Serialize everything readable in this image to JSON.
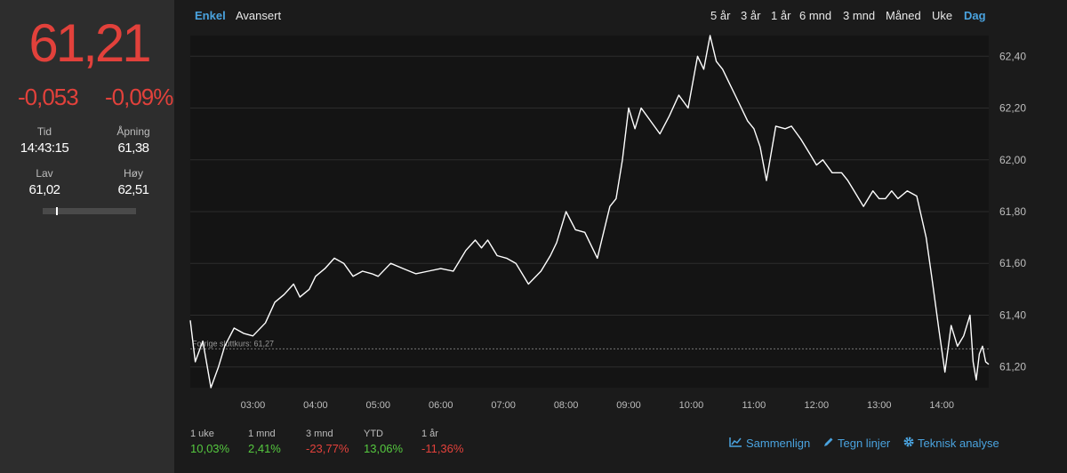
{
  "quote": {
    "price": "61,21",
    "change_abs": "-0,053",
    "change_pct": "-0,09%",
    "time_label": "Tid",
    "time_value": "14:43:15",
    "open_label": "Åpning",
    "open_value": "61,38",
    "low_label": "Lav",
    "low_value": "61,02",
    "high_label": "Høy",
    "high_value": "62,51",
    "range_position": 0.14
  },
  "view_tabs": [
    {
      "label": "Enkel",
      "active": true
    },
    {
      "label": "Avansert",
      "active": false
    }
  ],
  "periods": [
    {
      "label": "5 år",
      "active": false
    },
    {
      "label": "3 år",
      "active": false
    },
    {
      "label": "1 år",
      "active": false
    },
    {
      "label": "6 mnd",
      "active": false
    },
    {
      "label": "3 mnd",
      "active": false
    },
    {
      "label": "Måned",
      "active": false
    },
    {
      "label": "Uke",
      "active": false
    },
    {
      "label": "Dag",
      "active": true
    }
  ],
  "chart_data": {
    "type": "line",
    "x_ticks": [
      "03:00",
      "04:00",
      "05:00",
      "06:00",
      "07:00",
      "08:00",
      "09:00",
      "10:00",
      "11:00",
      "12:00",
      "13:00",
      "14:00"
    ],
    "y_ticks": [
      "62,40",
      "62,20",
      "62,00",
      "61,80",
      "61,60",
      "61,40",
      "61,20"
    ],
    "ylim": [
      61.12,
      62.48
    ],
    "xlim": [
      2.0,
      14.75
    ],
    "reference_line": {
      "label": "Forrige sluttkurs: 61,27",
      "value": 61.27
    },
    "series": [
      {
        "x": [
          2.0,
          2.08,
          2.2,
          2.33,
          2.45,
          2.55,
          2.7,
          2.85,
          3.0,
          3.2,
          3.35,
          3.5,
          3.65,
          3.75,
          3.9,
          4.0,
          4.15,
          4.3,
          4.45,
          4.6,
          4.75,
          4.9,
          5.0,
          5.2,
          5.4,
          5.6,
          5.8,
          6.0,
          6.2,
          6.4,
          6.55,
          6.65,
          6.75,
          6.9,
          7.05,
          7.2,
          7.4,
          7.6,
          7.75,
          7.85,
          8.0,
          8.15,
          8.3,
          8.5,
          8.7,
          8.8,
          8.9,
          9.0,
          9.1,
          9.2,
          9.35,
          9.5,
          9.65,
          9.8,
          9.95,
          10.1,
          10.2,
          10.3,
          10.4,
          10.5,
          10.6,
          10.7,
          10.8,
          10.9,
          11.0,
          11.1,
          11.2,
          11.35,
          11.5,
          11.6,
          11.75,
          11.9,
          12.0,
          12.1,
          12.25,
          12.4,
          12.5,
          12.6,
          12.75,
          12.9,
          13.0,
          13.1,
          13.2,
          13.3,
          13.45,
          13.6,
          13.75,
          13.85,
          13.95,
          14.05,
          14.15,
          14.25,
          14.35,
          14.45,
          14.5,
          14.55,
          14.6,
          14.65,
          14.7,
          14.75
        ],
        "y": [
          61.38,
          61.22,
          61.3,
          61.12,
          61.2,
          61.28,
          61.35,
          61.33,
          61.32,
          61.37,
          61.45,
          61.48,
          61.52,
          61.47,
          61.5,
          61.55,
          61.58,
          61.62,
          61.6,
          61.55,
          61.57,
          61.56,
          61.55,
          61.6,
          61.58,
          61.56,
          61.57,
          61.58,
          61.57,
          61.65,
          61.69,
          61.66,
          61.69,
          61.63,
          61.62,
          61.6,
          61.52,
          61.57,
          61.63,
          61.68,
          61.8,
          61.73,
          61.72,
          61.62,
          61.82,
          61.85,
          62.0,
          62.2,
          62.12,
          62.2,
          62.15,
          62.1,
          62.17,
          62.25,
          62.2,
          62.4,
          62.35,
          62.48,
          62.38,
          62.35,
          62.3,
          62.25,
          62.2,
          62.15,
          62.12,
          62.05,
          61.92,
          62.13,
          62.12,
          62.13,
          62.08,
          62.02,
          61.98,
          62.0,
          61.95,
          61.95,
          61.92,
          61.88,
          61.82,
          61.88,
          61.85,
          61.85,
          61.88,
          61.85,
          61.88,
          61.86,
          61.7,
          61.53,
          61.35,
          61.18,
          61.36,
          61.28,
          61.32,
          61.4,
          61.22,
          61.15,
          61.25,
          61.28,
          61.22,
          61.21
        ]
      }
    ]
  },
  "performance": [
    {
      "label": "1 uke",
      "value": "10,03%",
      "sign": "pos"
    },
    {
      "label": "1 mnd",
      "value": "2,41%",
      "sign": "pos"
    },
    {
      "label": "3 mnd",
      "value": "-23,77%",
      "sign": "neg"
    },
    {
      "label": "YTD",
      "value": "13,06%",
      "sign": "pos"
    },
    {
      "label": "1 år",
      "value": "-11,36%",
      "sign": "neg"
    }
  ],
  "tools": {
    "compare": "Sammenlign",
    "draw": "Tegn linjer",
    "technical": "Teknisk analyse"
  },
  "colors": {
    "negative": "#e2413b",
    "positive": "#55c83f",
    "accent": "#4aa3df",
    "line": "#ffffff"
  }
}
